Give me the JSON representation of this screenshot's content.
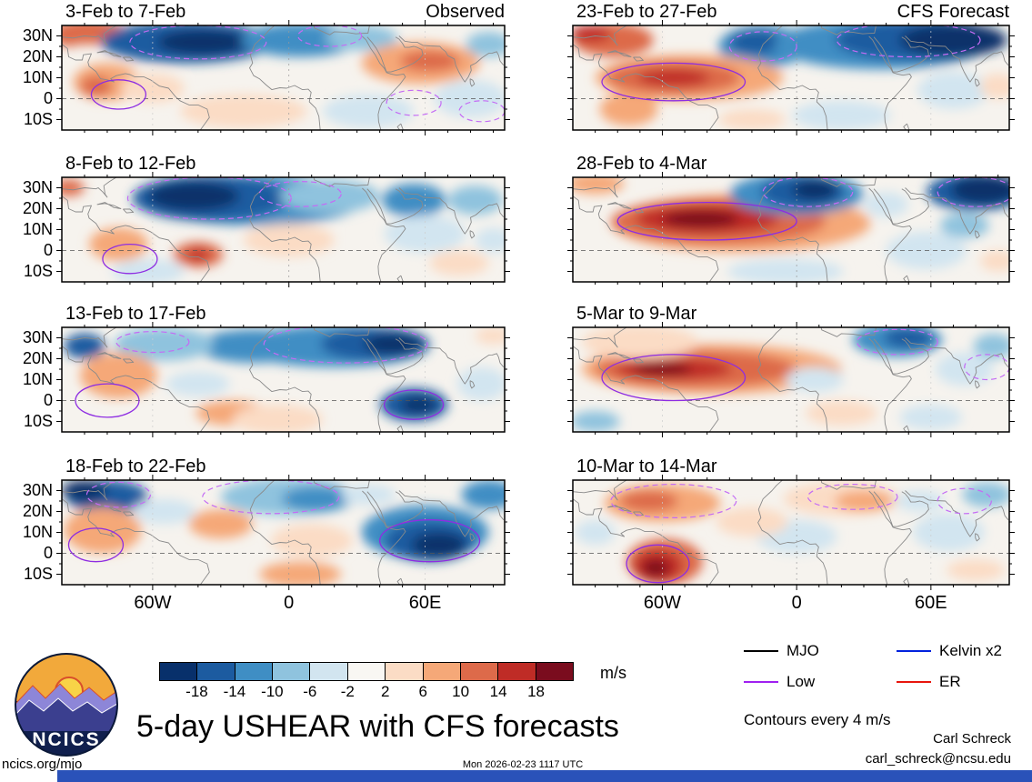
{
  "page": {
    "title": "5-day USHEAR with CFS forecasts",
    "logo_text": "NCICS",
    "footer_left": "ncics.org/mjo",
    "footer_center": "Mon 2026-02-23 1117 UTC",
    "credit_name": "Carl Schreck",
    "credit_email": "carl_schreck@ncsu.edu",
    "contour_note": "Contours every 4 m/s",
    "footer_bar_color": "#2a52b9"
  },
  "axes": {
    "lat_labels": [
      "30N",
      "20N",
      "10N",
      "0",
      "10S"
    ],
    "lat_values": [
      30,
      20,
      10,
      0,
      -10
    ],
    "lon_labels": [
      "60W",
      "0",
      "60E"
    ],
    "lon_values": [
      -60,
      0,
      60
    ]
  },
  "colorbar": {
    "unit": "m/s",
    "tick_labels": [
      "-18",
      "-14",
      "-10",
      "-6",
      "-2",
      "2",
      "6",
      "10",
      "14",
      "18"
    ],
    "colors": [
      "#08306b",
      "#1c5ba0",
      "#3f8ec4",
      "#8fc3de",
      "#d2e5f0",
      "#f9f7f3",
      "#fbdcc5",
      "#f5a878",
      "#dd6a4a",
      "#bf2c26",
      "#7a0c1e"
    ]
  },
  "legend": {
    "items": [
      {
        "label": "MJO",
        "color": "#000000"
      },
      {
        "label": "Kelvin x2",
        "color": "#0022dd"
      },
      {
        "label": "Low",
        "color": "#a020f0"
      },
      {
        "label": "ER",
        "color": "#e8150d"
      }
    ]
  },
  "chart_data": {
    "type": "heatmap",
    "title": "5-day USHEAR with CFS forecasts",
    "units": "m/s",
    "contour_interval_note": "Contours every 4 m/s",
    "lon_range": [
      -100,
      95
    ],
    "lat_range": [
      -15,
      35
    ],
    "levels": [
      -18,
      -14,
      -10,
      -6,
      -2,
      2,
      6,
      10,
      14,
      18
    ],
    "columns": [
      "Observed",
      "CFS Forecast"
    ],
    "contour_colors": {
      "dashed": "#c46bf5",
      "solid": "#8e2de2"
    },
    "panels": [
      {
        "title": "3-Feb to 7-Feb",
        "blobs": [
          [
            -88,
            32,
            16,
            6,
            8
          ],
          [
            -97,
            29,
            7,
            4,
            8
          ],
          [
            -45,
            27,
            38,
            10,
            1
          ],
          [
            -38,
            27,
            20,
            6,
            0
          ],
          [
            5,
            28,
            26,
            8,
            2
          ],
          [
            32,
            29,
            16,
            6,
            3
          ],
          [
            -80,
            8,
            15,
            9,
            7
          ],
          [
            -85,
            6,
            7,
            5,
            8
          ],
          [
            -20,
            -6,
            28,
            8,
            6
          ],
          [
            -60,
            5,
            14,
            7,
            6
          ],
          [
            58,
            17,
            26,
            10,
            7
          ],
          [
            62,
            18,
            13,
            5,
            8
          ],
          [
            35,
            -6,
            20,
            8,
            4
          ],
          [
            80,
            0,
            16,
            9,
            4
          ],
          [
            88,
            26,
            10,
            6,
            3
          ]
        ],
        "dashed": [
          [
            -40,
            27,
            30,
            8
          ],
          [
            18,
            30,
            14,
            5
          ],
          [
            55,
            -2,
            12,
            6
          ],
          [
            85,
            -6,
            10,
            5
          ]
        ],
        "solid": [
          [
            -75,
            2,
            12,
            7
          ]
        ]
      },
      {
        "title": "8-Feb to 12-Feb",
        "blobs": [
          [
            -97,
            30,
            7,
            4,
            8
          ],
          [
            -15,
            24,
            48,
            12,
            2
          ],
          [
            -35,
            25,
            34,
            11,
            1
          ],
          [
            -42,
            26,
            20,
            7,
            0
          ],
          [
            18,
            26,
            22,
            8,
            3
          ],
          [
            -75,
            3,
            13,
            8,
            7
          ],
          [
            -40,
            -2,
            11,
            6,
            8
          ],
          [
            -40,
            -2,
            5,
            3,
            9
          ],
          [
            -62,
            -10,
            16,
            6,
            4
          ],
          [
            55,
            24,
            14,
            8,
            2
          ],
          [
            82,
            24,
            12,
            7,
            3
          ],
          [
            60,
            8,
            18,
            9,
            4
          ],
          [
            75,
            -6,
            13,
            6,
            6
          ],
          [
            0,
            5,
            20,
            8,
            6
          ],
          [
            90,
            5,
            8,
            6,
            4
          ]
        ],
        "dashed": [
          [
            -35,
            25,
            36,
            10
          ],
          [
            5,
            27,
            18,
            6
          ]
        ],
        "solid": [
          [
            -70,
            -4,
            12,
            7
          ]
        ]
      },
      {
        "title": "13-Feb to 17-Feb",
        "blobs": [
          [
            20,
            26,
            42,
            10,
            2
          ],
          [
            38,
            27,
            24,
            8,
            1
          ],
          [
            46,
            27,
            13,
            5,
            0
          ],
          [
            -15,
            26,
            26,
            8,
            2
          ],
          [
            -55,
            27,
            22,
            8,
            3
          ],
          [
            -90,
            26,
            9,
            6,
            1
          ],
          [
            -78,
            12,
            11,
            8,
            8
          ],
          [
            -75,
            12,
            17,
            11,
            7
          ],
          [
            -25,
            -6,
            16,
            6,
            7
          ],
          [
            -5,
            -9,
            20,
            7,
            6
          ],
          [
            -40,
            8,
            14,
            6,
            4
          ],
          [
            55,
            -2,
            15,
            8,
            1
          ],
          [
            57,
            -2,
            8,
            4,
            0
          ],
          [
            85,
            8,
            11,
            8,
            4
          ],
          [
            90,
            31,
            8,
            4,
            6
          ]
        ],
        "dashed": [
          [
            25,
            27,
            36,
            9
          ],
          [
            -60,
            28,
            16,
            5
          ]
        ],
        "solid": [
          [
            -80,
            0,
            14,
            8
          ],
          [
            55,
            -2,
            13,
            7
          ]
        ]
      },
      {
        "title": "18-Feb to 22-Feb",
        "blobs": [
          [
            -80,
            27,
            18,
            8,
            1
          ],
          [
            -90,
            30,
            10,
            5,
            0
          ],
          [
            -84,
            11,
            10,
            7,
            9
          ],
          [
            -82,
            11,
            17,
            11,
            7
          ],
          [
            0,
            27,
            30,
            9,
            3
          ],
          [
            12,
            26,
            15,
            6,
            2
          ],
          [
            60,
            10,
            28,
            13,
            2
          ],
          [
            62,
            6,
            20,
            10,
            1
          ],
          [
            66,
            4,
            12,
            6,
            0
          ],
          [
            88,
            28,
            12,
            7,
            2
          ],
          [
            10,
            6,
            18,
            8,
            6
          ],
          [
            -30,
            14,
            14,
            7,
            7
          ],
          [
            5,
            -10,
            18,
            6,
            7
          ],
          [
            -55,
            20,
            14,
            6,
            4
          ],
          [
            35,
            28,
            12,
            5,
            4
          ]
        ],
        "dashed": [
          [
            -8,
            27,
            30,
            8
          ],
          [
            -75,
            28,
            14,
            6
          ]
        ],
        "solid": [
          [
            62,
            6,
            22,
            10
          ],
          [
            -85,
            4,
            12,
            8
          ]
        ]
      },
      {
        "title": "23-Feb to 27-Feb",
        "blobs": [
          [
            -82,
            28,
            18,
            8,
            8
          ],
          [
            -92,
            31,
            9,
            4,
            9
          ],
          [
            -15,
            25,
            20,
            10,
            2
          ],
          [
            -18,
            27,
            12,
            6,
            1
          ],
          [
            38,
            26,
            48,
            12,
            2
          ],
          [
            55,
            28,
            38,
            10,
            1
          ],
          [
            70,
            28,
            24,
            8,
            0
          ],
          [
            -48,
            10,
            42,
            11,
            7
          ],
          [
            -55,
            10,
            30,
            8,
            8
          ],
          [
            -55,
            10,
            16,
            4,
            9
          ],
          [
            -75,
            -5,
            13,
            8,
            7
          ],
          [
            20,
            -8,
            22,
            7,
            4
          ],
          [
            70,
            4,
            16,
            9,
            4
          ],
          [
            90,
            6,
            8,
            6,
            6
          ],
          [
            -20,
            -10,
            15,
            5,
            6
          ]
        ],
        "dashed": [
          [
            50,
            28,
            32,
            8
          ],
          [
            -15,
            25,
            15,
            7
          ]
        ],
        "solid": [
          [
            -55,
            8,
            32,
            9
          ]
        ]
      },
      {
        "title": "28-Feb to 4-Mar",
        "blobs": [
          [
            -25,
            13,
            58,
            14,
            7
          ],
          [
            -35,
            14,
            48,
            11,
            8
          ],
          [
            -40,
            15,
            32,
            7,
            9
          ],
          [
            -43,
            15,
            17,
            4,
            10
          ],
          [
            0,
            27,
            30,
            10,
            2
          ],
          [
            3,
            28,
            19,
            8,
            1
          ],
          [
            8,
            29,
            10,
            5,
            0
          ],
          [
            80,
            28,
            22,
            9,
            1
          ],
          [
            84,
            29,
            15,
            7,
            0
          ],
          [
            -90,
            32,
            13,
            5,
            7
          ],
          [
            -5,
            -10,
            26,
            6,
            4
          ],
          [
            58,
            0,
            18,
            9,
            4
          ],
          [
            75,
            12,
            11,
            6,
            3
          ],
          [
            40,
            22,
            10,
            6,
            4
          ],
          [
            90,
            -5,
            8,
            5,
            6
          ]
        ],
        "dashed": [
          [
            5,
            28,
            20,
            7
          ],
          [
            80,
            28,
            17,
            7
          ]
        ],
        "solid": [
          [
            -40,
            14,
            40,
            9
          ]
        ]
      },
      {
        "title": "5-Mar to 9-Mar",
        "blobs": [
          [
            -38,
            15,
            58,
            12,
            7
          ],
          [
            -45,
            15,
            45,
            9,
            8
          ],
          [
            -55,
            15,
            26,
            5,
            9
          ],
          [
            -60,
            15,
            13,
            3,
            10
          ],
          [
            -70,
            28,
            26,
            8,
            6
          ],
          [
            45,
            29,
            20,
            8,
            2
          ],
          [
            50,
            30,
            11,
            5,
            1
          ],
          [
            75,
            15,
            13,
            8,
            4
          ],
          [
            88,
            26,
            9,
            6,
            3
          ],
          [
            -90,
            -10,
            11,
            5,
            3
          ],
          [
            20,
            -6,
            16,
            6,
            6
          ],
          [
            8,
            10,
            13,
            6,
            4
          ],
          [
            60,
            -8,
            14,
            6,
            4
          ]
        ],
        "dashed": [
          [
            45,
            28,
            18,
            6
          ],
          [
            85,
            16,
            10,
            6
          ]
        ],
        "solid": [
          [
            -55,
            11,
            32,
            11
          ]
        ]
      },
      {
        "title": "10-Mar to 14-Mar",
        "blobs": [
          [
            -60,
            24,
            26,
            9,
            7
          ],
          [
            -66,
            25,
            13,
            5,
            8
          ],
          [
            -59,
            -4,
            17,
            11,
            8
          ],
          [
            -62,
            -6,
            11,
            8,
            9
          ],
          [
            -63,
            -7,
            6,
            4,
            10
          ],
          [
            20,
            26,
            26,
            8,
            6
          ],
          [
            30,
            25,
            13,
            5,
            7
          ],
          [
            0,
            8,
            18,
            8,
            4
          ],
          [
            68,
            10,
            16,
            9,
            4
          ],
          [
            85,
            28,
            11,
            6,
            3
          ],
          [
            55,
            25,
            11,
            5,
            4
          ],
          [
            80,
            -8,
            13,
            5,
            6
          ],
          [
            -20,
            15,
            16,
            7,
            6
          ],
          [
            -90,
            10,
            9,
            6,
            4
          ]
        ],
        "dashed": [
          [
            -55,
            25,
            28,
            8
          ],
          [
            25,
            27,
            20,
            6
          ],
          [
            75,
            25,
            12,
            6
          ]
        ],
        "solid": [
          [
            -62,
            -5,
            14,
            9
          ]
        ]
      }
    ]
  }
}
